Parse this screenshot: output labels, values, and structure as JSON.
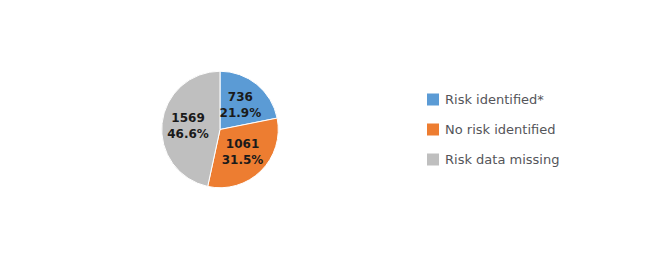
{
  "chart_data": {
    "type": "pie",
    "categories": [
      "Risk identified*",
      "No risk identified",
      "Risk data missing"
    ],
    "values": [
      736,
      1061,
      1569
    ],
    "percentages": [
      {
        "value": 21.9,
        "label": "21.9%"
      },
      {
        "value": 31.5,
        "label": "31.5%"
      },
      {
        "value": 46.6,
        "label": "46.6%"
      }
    ],
    "colors": [
      "#5B9BD5",
      "#ED7D31",
      "#BFBFBF"
    ],
    "data_labels": true,
    "legend": "right"
  }
}
